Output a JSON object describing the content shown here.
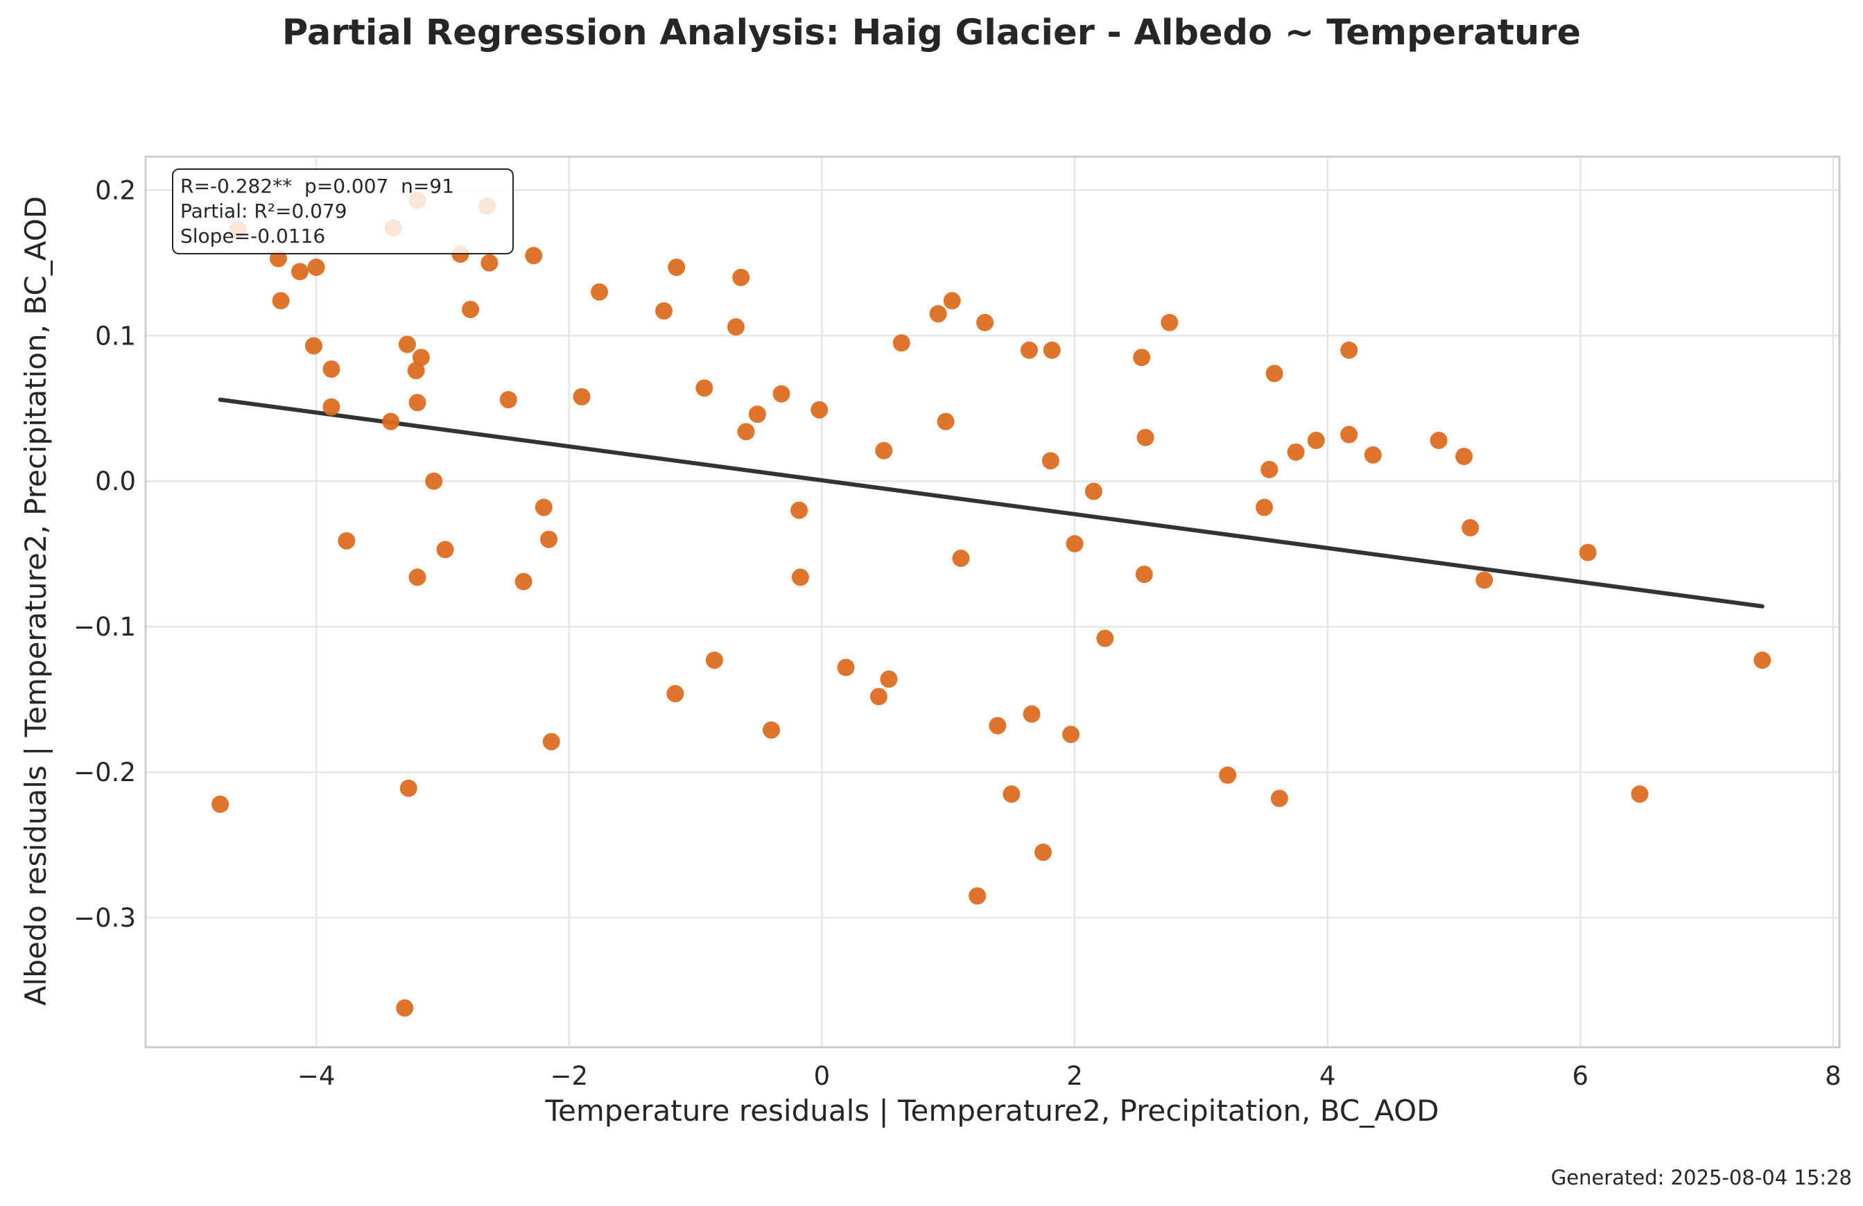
{
  "title": "Partial Regression Analysis: Haig Glacier - Albedo ~ Temperature",
  "footer": "Generated: 2025-08-04 15:28",
  "stats": {
    "line1": "R=-0.282**  p=0.007  n=91",
    "line2": "Partial: R²=0.079",
    "line3": "Slope=-0.0116"
  },
  "colors": {
    "points": "#dd6b1d",
    "fit_line": "#333333",
    "grid": "#e6e6e6",
    "frame": "#cccccc"
  },
  "chart_data": {
    "type": "scatter",
    "title": "Partial Regression Analysis: Haig Glacier - Albedo ~ Temperature",
    "xlabel": "Temperature residuals | Temperature2, Precipitation, BC_AOD",
    "ylabel": "Albedo residuals | Temperature2, Precipitation, BC_AOD",
    "xlim": [
      -5.35,
      8.05
    ],
    "ylim": [
      -0.389,
      0.223
    ],
    "xticks": [
      -4,
      -2,
      0,
      2,
      4,
      6,
      8
    ],
    "xtick_labels": [
      "−4",
      "−2",
      "0",
      "2",
      "4",
      "6",
      "8"
    ],
    "yticks": [
      -0.3,
      -0.2,
      -0.1,
      0.0,
      0.1,
      0.2
    ],
    "ytick_labels": [
      "−0.3",
      "−0.2",
      "−0.1",
      "0.0",
      "0.1",
      "0.2"
    ],
    "grid": true,
    "fit_line": {
      "x": [
        -4.76,
        7.44
      ],
      "y": [
        0.056,
        -0.086
      ]
    },
    "x": [
      -4.76,
      -4.62,
      -4.3,
      -4.28,
      -4.13,
      -4.0,
      -4.02,
      -3.88,
      -3.88,
      -3.76,
      -3.41,
      -3.39,
      -3.28,
      -3.27,
      -3.3,
      -3.2,
      -3.21,
      -3.2,
      -3.17,
      -3.2,
      -3.07,
      -2.98,
      -2.86,
      -2.78,
      -2.65,
      -2.63,
      -2.48,
      -2.36,
      -2.28,
      -2.2,
      -2.16,
      -2.14,
      -1.9,
      -1.76,
      -1.25,
      -1.16,
      -1.15,
      -0.93,
      -0.85,
      -0.68,
      -0.64,
      -0.6,
      -0.51,
      -0.4,
      -0.32,
      -0.18,
      -0.17,
      -0.02,
      0.19,
      0.45,
      0.49,
      0.53,
      0.63,
      0.92,
      0.98,
      1.03,
      1.1,
      1.23,
      1.29,
      1.39,
      1.5,
      1.64,
      1.66,
      1.75,
      1.81,
      1.82,
      1.97,
      2.0,
      2.15,
      2.24,
      2.53,
      2.55,
      2.56,
      2.75,
      3.21,
      3.5,
      3.54,
      3.58,
      3.62,
      3.75,
      3.91,
      4.17,
      4.17,
      4.36,
      4.88,
      5.08,
      5.13,
      5.24,
      6.06,
      6.47,
      7.44
    ],
    "y": [
      -0.222,
      0.173,
      0.153,
      0.124,
      0.144,
      0.147,
      0.093,
      0.077,
      0.051,
      -0.041,
      0.041,
      0.174,
      0.094,
      -0.211,
      -0.362,
      0.193,
      0.076,
      0.054,
      0.085,
      -0.066,
      0.0,
      -0.047,
      0.156,
      0.118,
      0.189,
      0.15,
      0.056,
      -0.069,
      0.155,
      -0.018,
      -0.04,
      -0.179,
      0.058,
      0.13,
      0.117,
      -0.146,
      0.147,
      0.064,
      -0.123,
      0.106,
      0.14,
      0.034,
      0.046,
      -0.171,
      0.06,
      -0.02,
      -0.066,
      0.049,
      -0.128,
      -0.148,
      0.021,
      -0.136,
      0.095,
      0.115,
      0.041,
      0.124,
      -0.053,
      -0.285,
      0.109,
      -0.168,
      -0.215,
      0.09,
      -0.16,
      -0.255,
      0.014,
      0.09,
      -0.174,
      -0.043,
      -0.007,
      -0.108,
      0.085,
      -0.064,
      0.03,
      0.109,
      -0.202,
      -0.018,
      0.008,
      0.074,
      -0.218,
      0.02,
      0.028,
      0.032,
      0.09,
      0.018,
      0.028,
      0.017,
      -0.032,
      -0.068,
      -0.049,
      -0.215,
      -0.123
    ]
  }
}
